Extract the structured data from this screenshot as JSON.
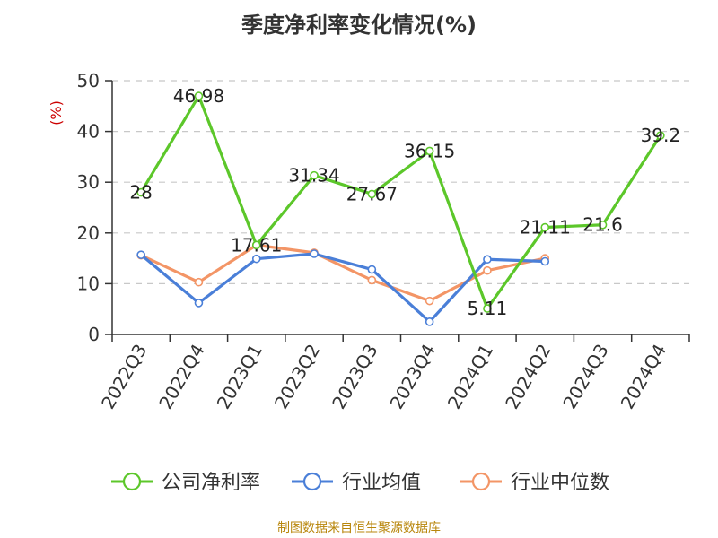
{
  "title": "季度净利率变化情况(%)",
  "source": "制图数据来自恒生聚源数据库",
  "chart_data": {
    "type": "line",
    "title": "季度净利率变化情况(%)",
    "ylabel": "(%)",
    "ylim": [
      0,
      50
    ],
    "yticks": [
      0,
      10,
      20,
      30,
      40,
      50
    ],
    "grid": true,
    "legend_position": "bottom",
    "categories": [
      "2022Q3",
      "2022Q4",
      "2023Q1",
      "2023Q2",
      "2023Q3",
      "2023Q4",
      "2024Q1",
      "2024Q2",
      "2024Q3",
      "2024Q4"
    ],
    "series": [
      {
        "name": "公司净利率",
        "color": "#5cc72a",
        "values": [
          28,
          46.98,
          17.61,
          31.34,
          27.67,
          36.15,
          5.11,
          21.11,
          21.6,
          39.2
        ],
        "labels": [
          "28",
          "46.98",
          "17.61",
          "31.34",
          "27.67",
          "36.15",
          "5.11",
          "21.11",
          "21.6",
          "39.2"
        ]
      },
      {
        "name": "行业均值",
        "color": "#4a7fd8",
        "values": [
          15.7,
          6.2,
          14.9,
          15.9,
          12.8,
          2.5,
          14.8,
          14.4,
          null,
          null
        ]
      },
      {
        "name": "行业中位数",
        "color": "#f39566",
        "values": [
          15.6,
          10.3,
          17.6,
          16.1,
          10.7,
          6.6,
          12.6,
          15.0,
          null,
          null
        ]
      }
    ]
  }
}
